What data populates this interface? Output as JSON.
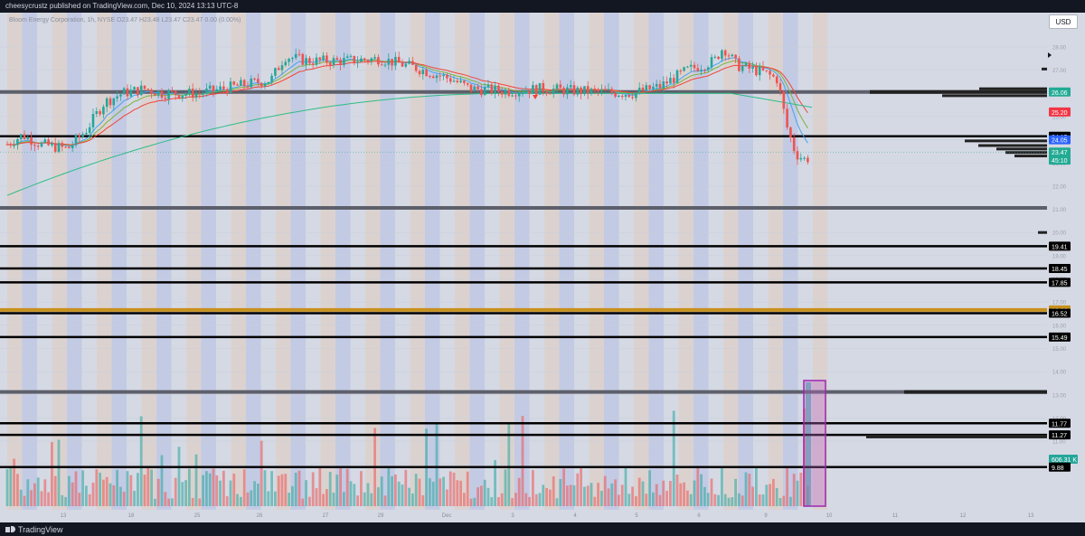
{
  "header": {
    "published_text": "cheesycrustz published on TradingView.com, Dec 10, 2024 13:13 UTC-8",
    "legend_text": "Bloom Energy Corporation, 1h, NYSE  O23.47 H23.48 L23.47 C23.47 0.00 (0.00%)"
  },
  "currency_button": "USD",
  "footer": {
    "brand": "TradingView"
  },
  "colors": {
    "up": "#26a69a",
    "down": "#ef5350",
    "ema_slow": "#2ebd85",
    "ema_mid": "#7cb342",
    "ema_fast": "#42a5f5",
    "ema_red": "#f44336",
    "gold": "#c8911d"
  },
  "chart_data": {
    "type": "candlestick",
    "symbol": "Bloom Energy Corporation",
    "interval": "1h",
    "exchange": "NYSE",
    "ohlc_last": {
      "open": 23.47,
      "high": 23.48,
      "low": 23.47,
      "close": 23.47,
      "change": "0.00 (0.00%)"
    },
    "x_tick_labels": [
      "13",
      "18",
      "25",
      "26",
      "27",
      "29",
      "Dec",
      "3",
      "4",
      "5",
      "6",
      "9",
      "10",
      "11",
      "12",
      "13",
      "16"
    ],
    "y_tick_labels": [
      "28.00",
      "27.00",
      "26.00",
      "25.00",
      "24.00",
      "23.00",
      "22.00",
      "21.00",
      "20.00",
      "19.00",
      "18.00",
      "17.00",
      "16.00",
      "15.00",
      "14.00",
      "13.00",
      "12.00",
      "11.00",
      "10.00"
    ],
    "ylim": [
      9.4,
      29.2
    ],
    "support_resistance_levels": [
      26.06,
      24.15,
      21.06,
      19.41,
      18.45,
      17.85,
      16.66,
      16.52,
      15.49,
      13.12,
      11.77,
      11.27,
      9.88
    ],
    "price_labels": [
      {
        "value": "26.06",
        "price": 26.06,
        "kind": "green"
      },
      {
        "value": "25.20",
        "price": 25.2,
        "kind": "red"
      },
      {
        "value": "24.15",
        "price": 24.15,
        "kind": "black"
      },
      {
        "value": "24.05",
        "price": 24.0,
        "kind": "blue"
      },
      {
        "value": "23.47",
        "price": 23.47,
        "kind": "green"
      },
      {
        "value": "45:10",
        "price": 23.12,
        "kind": "green"
      },
      {
        "value": "19.41",
        "price": 19.41,
        "kind": "black"
      },
      {
        "value": "18.45",
        "price": 18.45,
        "kind": "black"
      },
      {
        "value": "17.85",
        "price": 17.85,
        "kind": "black"
      },
      {
        "value": "16.66",
        "price": 16.66,
        "kind": "gold"
      },
      {
        "value": "16.52",
        "price": 16.52,
        "kind": "black"
      },
      {
        "value": "15.49",
        "price": 15.49,
        "kind": "black"
      },
      {
        "value": "11.77",
        "price": 11.77,
        "kind": "black"
      },
      {
        "value": "11.27",
        "price": 11.27,
        "kind": "black"
      },
      {
        "value": "606.31 K",
        "price": 10.22,
        "kind": "teal"
      },
      {
        "value": "9.88",
        "price": 9.88,
        "kind": "black"
      }
    ],
    "last_volume": "606.31 K",
    "grid": true,
    "legend": "top-left"
  }
}
